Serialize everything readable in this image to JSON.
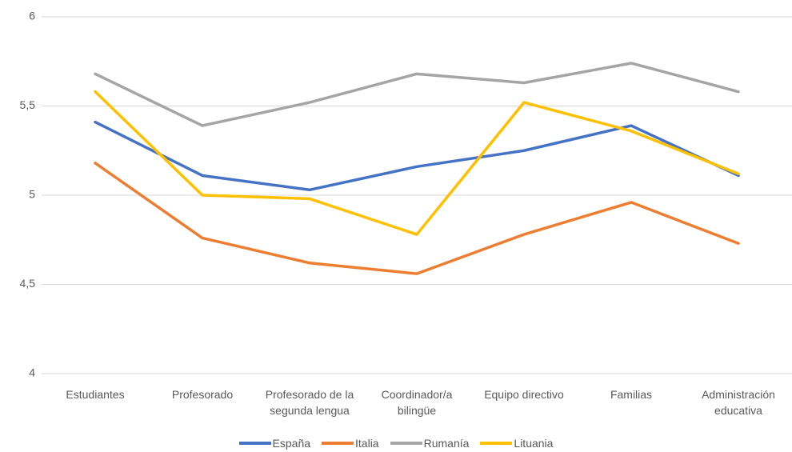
{
  "chart_data": {
    "type": "line",
    "categories": [
      "Estudiantes",
      "Profesorado",
      "Profesorado de la segunda lengua",
      "Coordinador/a bilingüe",
      "Equipo directivo",
      "Familias",
      "Administración educativa"
    ],
    "series": [
      {
        "name": "España",
        "color": "#4472c4",
        "values": [
          5.41,
          5.11,
          5.03,
          5.16,
          5.25,
          5.39,
          5.11
        ]
      },
      {
        "name": "Italia",
        "color": "#ed7d31",
        "values": [
          5.18,
          4.76,
          4.62,
          4.56,
          4.78,
          4.96,
          4.73
        ]
      },
      {
        "name": "Rumanía",
        "color": "#a5a5a5",
        "values": [
          5.68,
          5.39,
          5.52,
          5.68,
          5.63,
          5.74,
          5.58
        ]
      },
      {
        "name": "Lituania",
        "color": "#ffc000",
        "values": [
          5.58,
          5.0,
          4.98,
          4.78,
          5.52,
          5.36,
          5.12
        ]
      }
    ],
    "ylim": [
      4,
      6
    ],
    "yticks": [
      {
        "value": 4,
        "label": "4"
      },
      {
        "value": 4.5,
        "label": "4,5"
      },
      {
        "value": 5,
        "label": "5"
      },
      {
        "value": 5.5,
        "label": "5,5"
      },
      {
        "value": 6,
        "label": "6"
      }
    ],
    "grid": true,
    "legend": "bottom"
  }
}
